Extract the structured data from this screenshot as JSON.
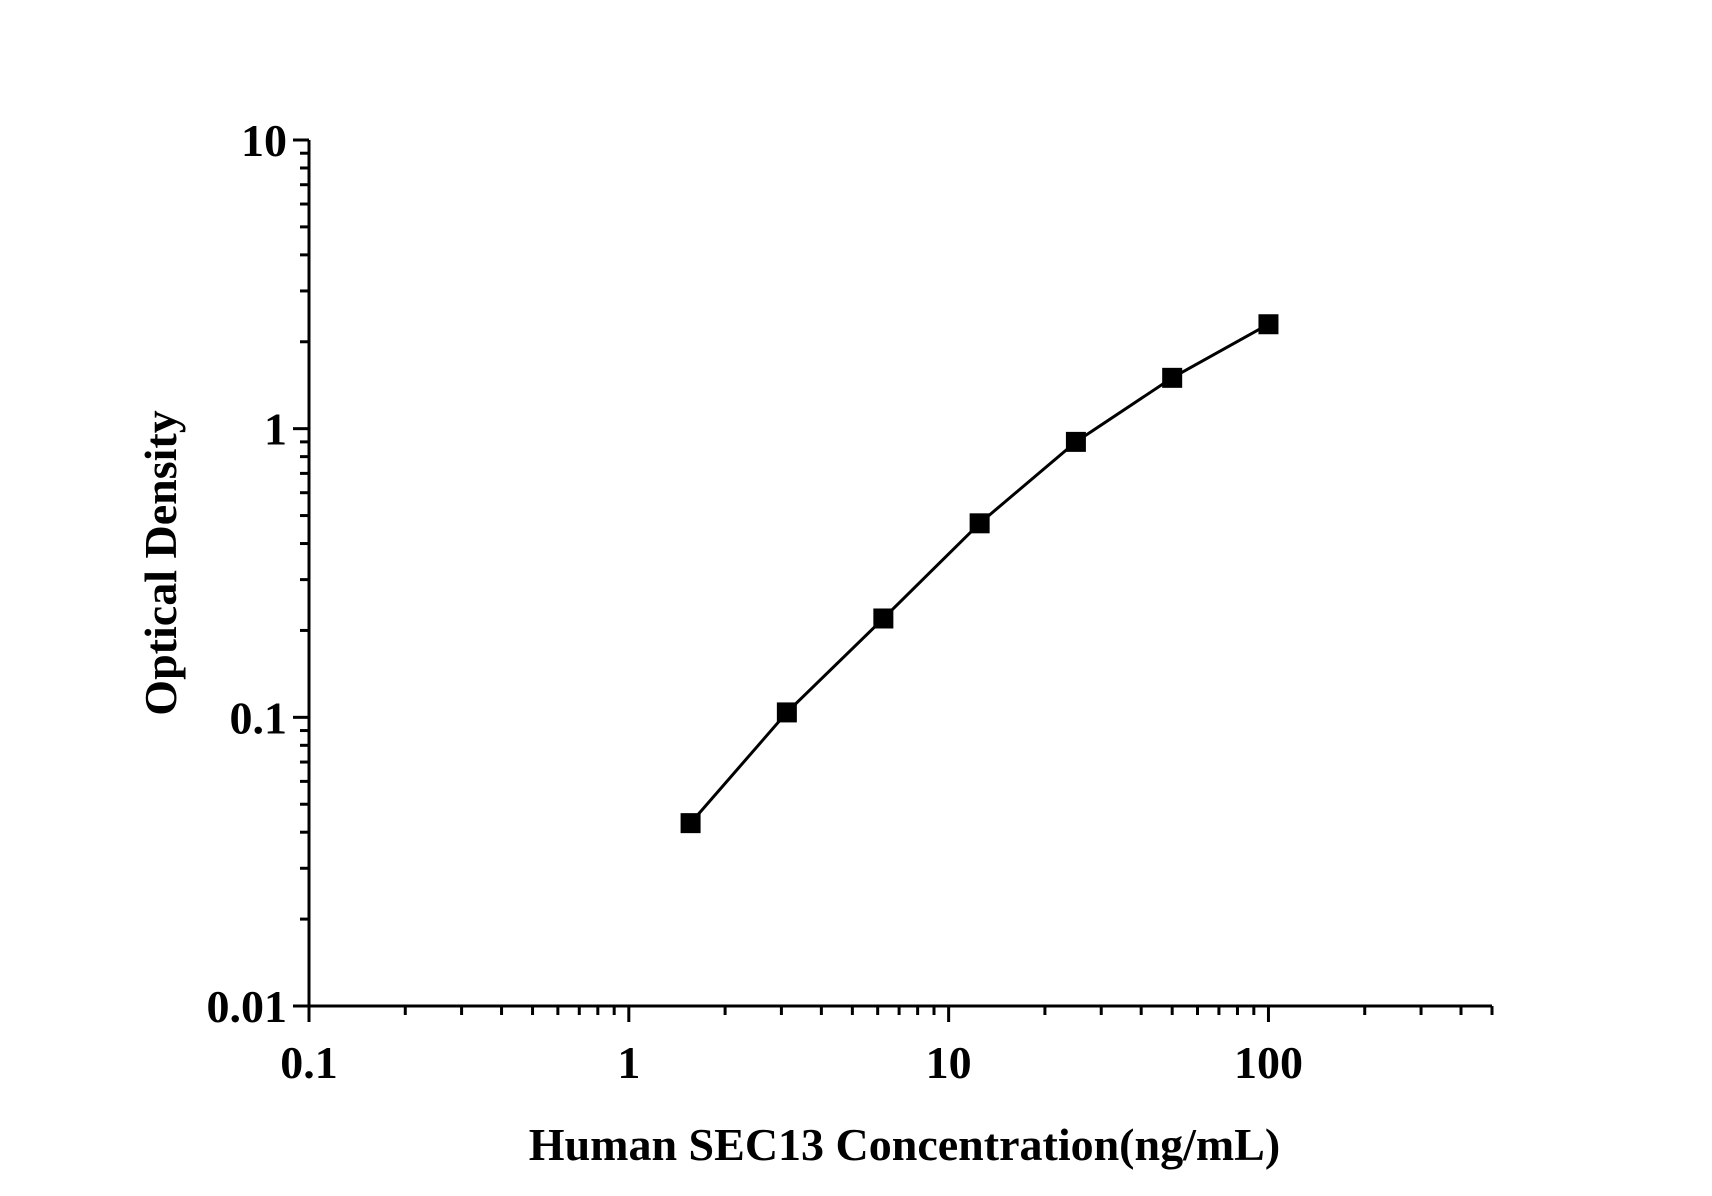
{
  "chart_data": {
    "type": "line",
    "title": "",
    "xlabel": "Human SEC13 Concentration(ng/mL)",
    "ylabel": "Optical Density",
    "x_scale": "log",
    "y_scale": "log",
    "xlim": [
      0.1,
      500
    ],
    "ylim": [
      0.01,
      10
    ],
    "x_ticks": [
      {
        "value": 0.1,
        "label": "0.1"
      },
      {
        "value": 1,
        "label": "1"
      },
      {
        "value": 10,
        "label": "10"
      },
      {
        "value": 100,
        "label": "100"
      }
    ],
    "y_ticks": [
      {
        "value": 0.01,
        "label": "0.01"
      },
      {
        "value": 0.1,
        "label": "0.1"
      },
      {
        "value": 1,
        "label": "1"
      },
      {
        "value": 10,
        "label": "10"
      }
    ],
    "grid": false,
    "legend": "none",
    "series": [
      {
        "marker": "square",
        "color": "#000000",
        "x": [
          1.56,
          3.12,
          6.25,
          12.5,
          25,
          50,
          100
        ],
        "y": [
          0.043,
          0.104,
          0.22,
          0.47,
          0.9,
          1.5,
          2.3
        ]
      }
    ]
  }
}
